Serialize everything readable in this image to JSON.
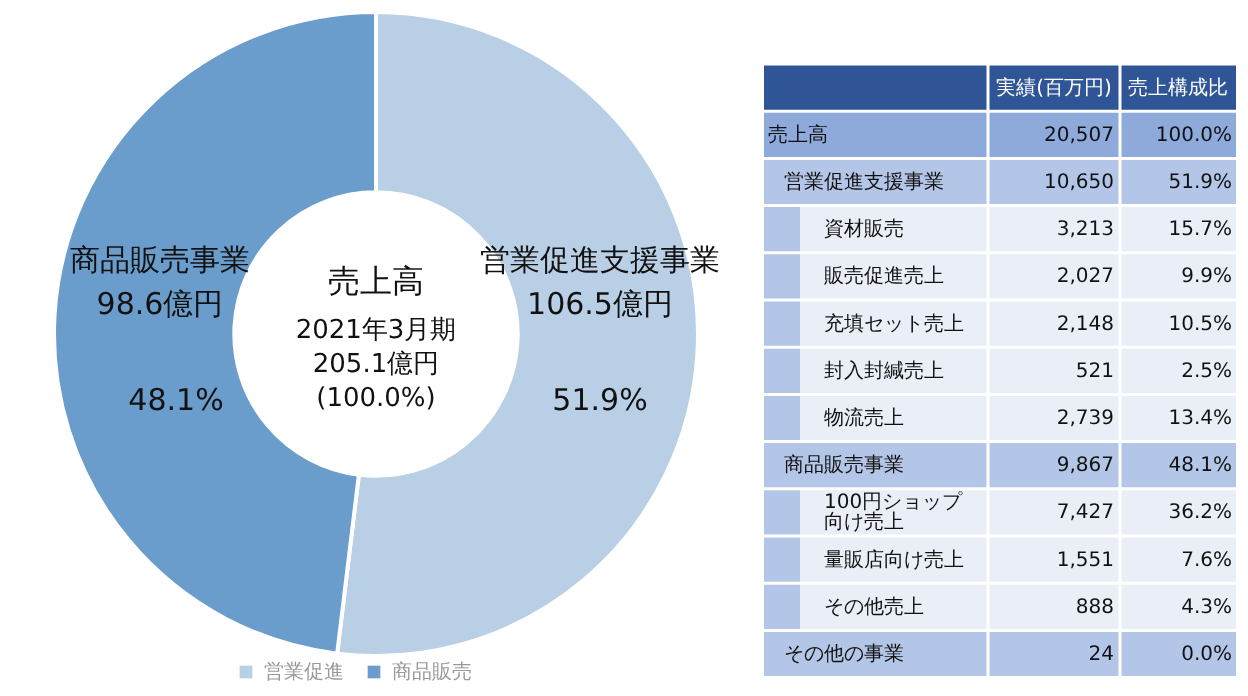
{
  "chart_data": [
    {
      "type": "donut",
      "categories": [
        "営業促進",
        "商品販売"
      ],
      "values": [
        106.5,
        98.6
      ],
      "colors": [
        "#b8cfe6",
        "#6b9dcc"
      ],
      "value_labels": [
        "106.5億円",
        "98.6億円"
      ],
      "legend": "bottom",
      "annotations": [
        "営業促進支援事業",
        "商品販売事業",
        "51.9%",
        "48.1%",
        "売上高",
        "2021年3月期",
        "205.1億円",
        "(100.0%)"
      ]
    },
    {
      "type": "other",
      "annotations": [
        "実績(百万円)",
        "売上構成比",
        "売上高",
        "20,507",
        "100.0%",
        "営業促進支援事業",
        "10,650",
        "51.9%",
        "資材販売",
        "3,213",
        "15.7%",
        "販売促進売上",
        "2,027",
        "9.9%",
        "充填セット売上",
        "2,148",
        "10.5%",
        "封入封緘売上",
        "521",
        "2.5%",
        "物流売上",
        "2,739",
        "13.4%",
        "商品販売事業",
        "9,867",
        "48.1%",
        "100円ショップ向け売上",
        "7,427",
        "36.2%",
        "量販店向け売上",
        "1,551",
        "7.6%",
        "その他売上",
        "888",
        "4.3%",
        "その他の事業",
        "24",
        "0.0%"
      ]
    }
  ]
}
